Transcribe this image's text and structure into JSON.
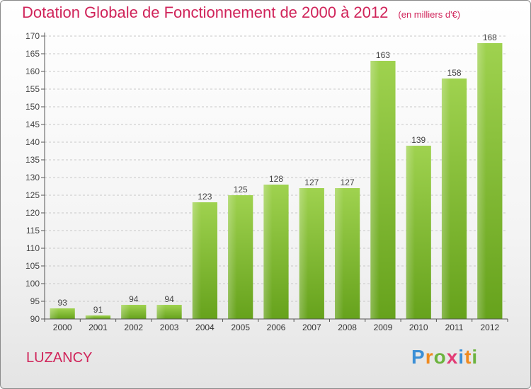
{
  "header": {
    "title": "Dotation Globale de Fonctionnement de 2000 à 2012",
    "unit": "(en milliers d'€)"
  },
  "commune": "LUZANCY",
  "logo": {
    "letters": [
      "P",
      "r",
      "o",
      "x",
      "i",
      "t",
      "i"
    ],
    "colors": [
      "#3b8fd6",
      "#f08a1e",
      "#6cb33e",
      "#e23c76",
      "#3b8fd6",
      "#f08a1e",
      "#6cb33e"
    ]
  },
  "chart_data": {
    "type": "bar",
    "title": "Dotation Globale de Fonctionnement de 2000 à 2012",
    "subtitle": "(en milliers d'€)",
    "xlabel": "",
    "ylabel": "",
    "categories": [
      "2000",
      "2001",
      "2002",
      "2003",
      "2004",
      "2005",
      "2006",
      "2007",
      "2008",
      "2009",
      "2010",
      "2011",
      "2012"
    ],
    "values": [
      93,
      91,
      94,
      94,
      123,
      125,
      128,
      127,
      127,
      163,
      139,
      158,
      168
    ],
    "ylim": [
      90,
      170
    ],
    "yticks": [
      90,
      95,
      100,
      105,
      110,
      115,
      120,
      125,
      130,
      135,
      140,
      145,
      150,
      155,
      160,
      165,
      170
    ],
    "grid": true,
    "legend": "none",
    "bar_color": "#7cbf2e"
  }
}
